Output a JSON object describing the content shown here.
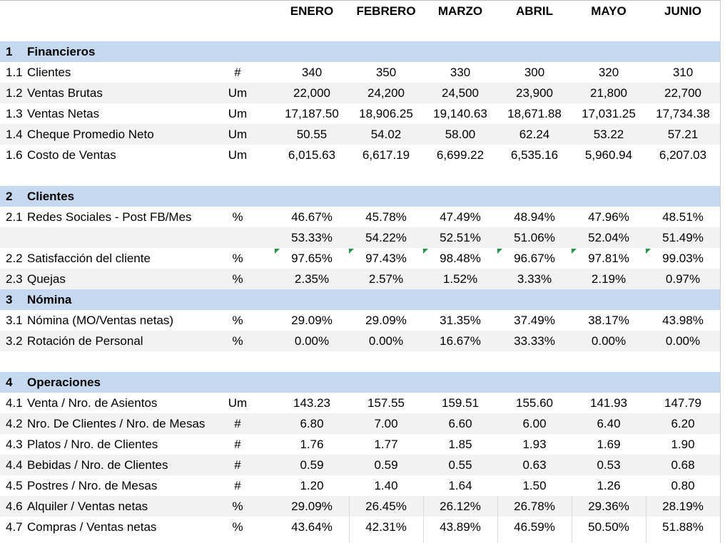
{
  "months": [
    "ENERO",
    "FEBRERO",
    "MARZO",
    "ABRIL",
    "MAYO",
    "JUNIO"
  ],
  "rows": [
    {
      "kind": "section",
      "num": "1",
      "label": "Financieros"
    },
    {
      "kind": "data",
      "num": "1.1",
      "label": "Clientes",
      "unit": "#",
      "values": [
        "340",
        "350",
        "330",
        "300",
        "320",
        "310"
      ]
    },
    {
      "kind": "data",
      "num": "1.2",
      "label": "Ventas Brutas",
      "unit": "Um",
      "values": [
        "22,000",
        "24,200",
        "24,500",
        "23,900",
        "21,800",
        "22,700"
      ]
    },
    {
      "kind": "data",
      "num": "1.3",
      "label": "Ventas Netas",
      "unit": "Um",
      "values": [
        "17,187.50",
        "18,906.25",
        "19,140.63",
        "18,671.88",
        "17,031.25",
        "17,734.38"
      ]
    },
    {
      "kind": "data",
      "num": "1.4",
      "label": "Cheque Promedio Neto",
      "unit": "Um",
      "values": [
        "50.55",
        "54.02",
        "58.00",
        "62.24",
        "53.22",
        "57.21"
      ]
    },
    {
      "kind": "data",
      "num": "1.6",
      "label": "Costo de Ventas",
      "unit": "Um",
      "values": [
        "6,015.63",
        "6,617.19",
        "6,699.22",
        "6,535.16",
        "5,960.94",
        "6,207.03"
      ]
    },
    {
      "kind": "blank"
    },
    {
      "kind": "section",
      "num": "2",
      "label": "Clientes"
    },
    {
      "kind": "data",
      "num": "2.1",
      "label": "Redes Sociales - Post FB/Mes",
      "unit": "%",
      "values": [
        "46.67%",
        "45.78%",
        "47.49%",
        "48.94%",
        "47.96%",
        "48.51%"
      ]
    },
    {
      "kind": "data",
      "num": "",
      "label": "",
      "unit": "",
      "values": [
        "53.33%",
        "54.22%",
        "52.51%",
        "51.06%",
        "52.04%",
        "51.49%"
      ]
    },
    {
      "kind": "data",
      "num": "2.2",
      "label": "Satisfacción del cliente",
      "unit": "%",
      "values": [
        "97.65%",
        "97.43%",
        "98.48%",
        "96.67%",
        "97.81%",
        "99.03%"
      ],
      "flagged": true
    },
    {
      "kind": "data",
      "num": "2.3",
      "label": "Quejas",
      "unit": "%",
      "values": [
        "2.35%",
        "2.57%",
        "1.52%",
        "3.33%",
        "2.19%",
        "0.97%"
      ]
    },
    {
      "kind": "section",
      "num": "3",
      "label": "Nómina"
    },
    {
      "kind": "data",
      "num": "3.1",
      "label": "Nómina (MO/Ventas netas)",
      "unit": "%",
      "values": [
        "29.09%",
        "29.09%",
        "31.35%",
        "37.49%",
        "38.17%",
        "43.98%"
      ]
    },
    {
      "kind": "data",
      "num": "3.2",
      "label": "Rotación de Personal",
      "unit": "%",
      "values": [
        "0.00%",
        "0.00%",
        "16.67%",
        "33.33%",
        "0.00%",
        "0.00%"
      ]
    },
    {
      "kind": "blank"
    },
    {
      "kind": "section",
      "num": "4",
      "label": "Operaciones"
    },
    {
      "kind": "data",
      "num": "4.1",
      "label": "Venta / Nro.  de Asientos",
      "unit": "Um",
      "values": [
        "143.23",
        "157.55",
        "159.51",
        "155.60",
        "141.93",
        "147.79"
      ]
    },
    {
      "kind": "data",
      "num": "4.2",
      "label": "Nro. De Clientes / Nro. de Mesas",
      "unit": "#",
      "values": [
        "6.80",
        "7.00",
        "6.60",
        "6.00",
        "6.40",
        "6.20"
      ]
    },
    {
      "kind": "data",
      "num": "4.3",
      "label": "Platos / Nro. de Clientes",
      "unit": "#",
      "values": [
        "1.76",
        "1.77",
        "1.85",
        "1.93",
        "1.69",
        "1.90"
      ]
    },
    {
      "kind": "data",
      "num": "4.4",
      "label": "Bebidas / Nro. de Clientes",
      "unit": "#",
      "values": [
        "0.59",
        "0.59",
        "0.55",
        "0.63",
        "0.53",
        "0.68"
      ]
    },
    {
      "kind": "data",
      "num": "4.5",
      "label": "Postres / Nro. de Mesas",
      "unit": "#",
      "values": [
        "1.20",
        "1.40",
        "1.64",
        "1.50",
        "1.26",
        "0.80"
      ]
    },
    {
      "kind": "data",
      "num": "4.6",
      "label": "Alquiler / Ventas netas",
      "unit": "%",
      "values": [
        "29.09%",
        "26.45%",
        "26.12%",
        "26.78%",
        "29.36%",
        "28.19%"
      ]
    },
    {
      "kind": "data",
      "num": "4.7",
      "label": "Compras / Ventas netas",
      "unit": "%",
      "values": [
        "43.64%",
        "42.31%",
        "43.89%",
        "46.59%",
        "50.50%",
        "51.88%"
      ]
    }
  ],
  "colors": {
    "section": "#c5d9f1",
    "band": "#f2f2f2",
    "flag": "#1f9a3c"
  }
}
